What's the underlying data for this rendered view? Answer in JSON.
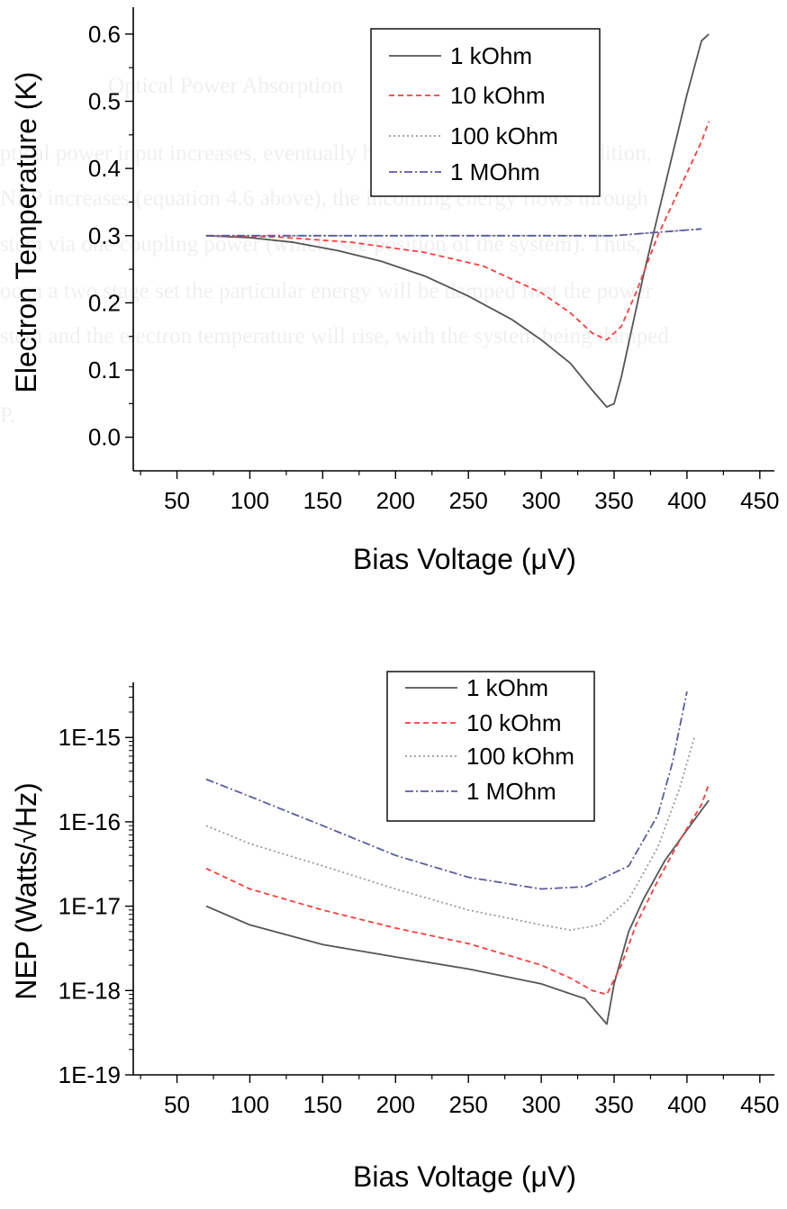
{
  "bleed_through": {
    "heading": "Optical Power Absorption",
    "lines": [
      "ptical power input increases, eventually heating measurably. In addition,",
      "NEP increases (equation 4.6 above), the incoming energy flows through",
      "stem via one coupling power (which, see position of the system). Thus,",
      "ocan a two stage set the particular energy will be damped first the power",
      "stem and the electron temperature will rise, with the system being damped",
      "P."
    ]
  },
  "chart_data": [
    {
      "type": "line",
      "title": "",
      "xlabel": "Bias Voltage (μV)",
      "ylabel": "Electron Temperature (K)",
      "xlim": [
        20,
        460
      ],
      "ylim": [
        -0.05,
        0.64
      ],
      "xticks": [
        50,
        100,
        150,
        200,
        250,
        300,
        350,
        400,
        450
      ],
      "yticks": [
        0.0,
        0.1,
        0.2,
        0.3,
        0.4,
        0.5,
        0.6
      ],
      "ytick_labels": [
        "0.0",
        "0.1",
        "0.2",
        "0.3",
        "0.4",
        "0.5",
        "0.6"
      ],
      "yscale": "linear",
      "grid": false,
      "legend_position": "top-right",
      "series": [
        {
          "name": "1 kOhm",
          "color": "#555555",
          "dash": "solid",
          "x": [
            70,
            100,
            130,
            160,
            190,
            220,
            250,
            280,
            300,
            320,
            335,
            345,
            350,
            355,
            360,
            370,
            380,
            390,
            400,
            410,
            415
          ],
          "y": [
            0.3,
            0.297,
            0.29,
            0.278,
            0.262,
            0.24,
            0.21,
            0.175,
            0.145,
            0.11,
            0.07,
            0.045,
            0.05,
            0.09,
            0.14,
            0.24,
            0.33,
            0.42,
            0.51,
            0.59,
            0.6
          ]
        },
        {
          "name": "10 kOhm",
          "color": "#ff3b3b",
          "dash": "dashed",
          "x": [
            70,
            120,
            170,
            220,
            260,
            300,
            320,
            335,
            345,
            355,
            365,
            380,
            395,
            410,
            415
          ],
          "y": [
            0.3,
            0.298,
            0.29,
            0.275,
            0.255,
            0.215,
            0.185,
            0.155,
            0.145,
            0.165,
            0.215,
            0.3,
            0.37,
            0.44,
            0.47
          ]
        },
        {
          "name": "100 kOhm",
          "color": "#9a9a9a",
          "dash": "dotted",
          "x": [
            70,
            130,
            200,
            260,
            310,
            350,
            380,
            410
          ],
          "y": [
            0.3,
            0.3,
            0.3,
            0.3,
            0.3,
            0.3,
            0.305,
            0.31
          ]
        },
        {
          "name": "1 MOhm",
          "color": "#5a5aa0",
          "dash": "dashdot",
          "x": [
            70,
            130,
            200,
            260,
            310,
            350,
            380,
            410
          ],
          "y": [
            0.3,
            0.3,
            0.3,
            0.3,
            0.3,
            0.3,
            0.305,
            0.31
          ]
        }
      ]
    },
    {
      "type": "line",
      "title": "",
      "xlabel": "Bias Voltage (μV)",
      "ylabel": "NEP (Watts/√Hz)",
      "xlim": [
        20,
        460
      ],
      "ylim": [
        1e-19,
        4.5e-15
      ],
      "yscale": "log",
      "xticks": [
        50,
        100,
        150,
        200,
        250,
        300,
        350,
        400,
        450
      ],
      "yticks": [
        1e-19,
        1e-18,
        1e-17,
        1e-16,
        1e-15
      ],
      "ytick_labels": [
        "1E-19",
        "1E-18",
        "1E-17",
        "1E-16",
        "1E-15"
      ],
      "grid": false,
      "legend_position": "top-right",
      "series": [
        {
          "name": "1 kOhm",
          "color": "#555555",
          "dash": "solid",
          "x": [
            70,
            100,
            150,
            200,
            250,
            300,
            330,
            345,
            350,
            360,
            370,
            385,
            400,
            415
          ],
          "y": [
            1e-17,
            6e-18,
            3.5e-18,
            2.5e-18,
            1.8e-18,
            1.2e-18,
            8e-19,
            4e-19,
            1.2e-18,
            5e-18,
            1.2e-17,
            3.5e-17,
            8e-17,
            1.8e-16
          ]
        },
        {
          "name": "10 kOhm",
          "color": "#ff3b3b",
          "dash": "dashed",
          "x": [
            70,
            100,
            150,
            200,
            250,
            300,
            320,
            335,
            345,
            355,
            365,
            380,
            395,
            410,
            415
          ],
          "y": [
            2.8e-17,
            1.6e-17,
            9e-18,
            5.5e-18,
            3.6e-18,
            2e-18,
            1.4e-18,
            1e-18,
            9e-19,
            2e-18,
            6e-18,
            2e-17,
            6e-17,
            1.6e-16,
            2.8e-16
          ]
        },
        {
          "name": "100 kOhm",
          "color": "#9a9a9a",
          "dash": "dotted",
          "x": [
            70,
            100,
            150,
            200,
            250,
            300,
            320,
            340,
            360,
            380,
            395,
            405
          ],
          "y": [
            9e-17,
            5.5e-17,
            3e-17,
            1.6e-17,
            9e-18,
            6e-18,
            5.2e-18,
            6e-18,
            1.2e-17,
            5e-17,
            2.5e-16,
            1e-15
          ]
        },
        {
          "name": "1 MOhm",
          "color": "#5a5aa0",
          "dash": "dashdot",
          "x": [
            70,
            100,
            150,
            200,
            250,
            300,
            330,
            360,
            380,
            390,
            400
          ],
          "y": [
            3.2e-16,
            2e-16,
            9e-17,
            4e-17,
            2.2e-17,
            1.6e-17,
            1.7e-17,
            3e-17,
            1.2e-16,
            5e-16,
            3.5e-15
          ]
        }
      ]
    }
  ]
}
